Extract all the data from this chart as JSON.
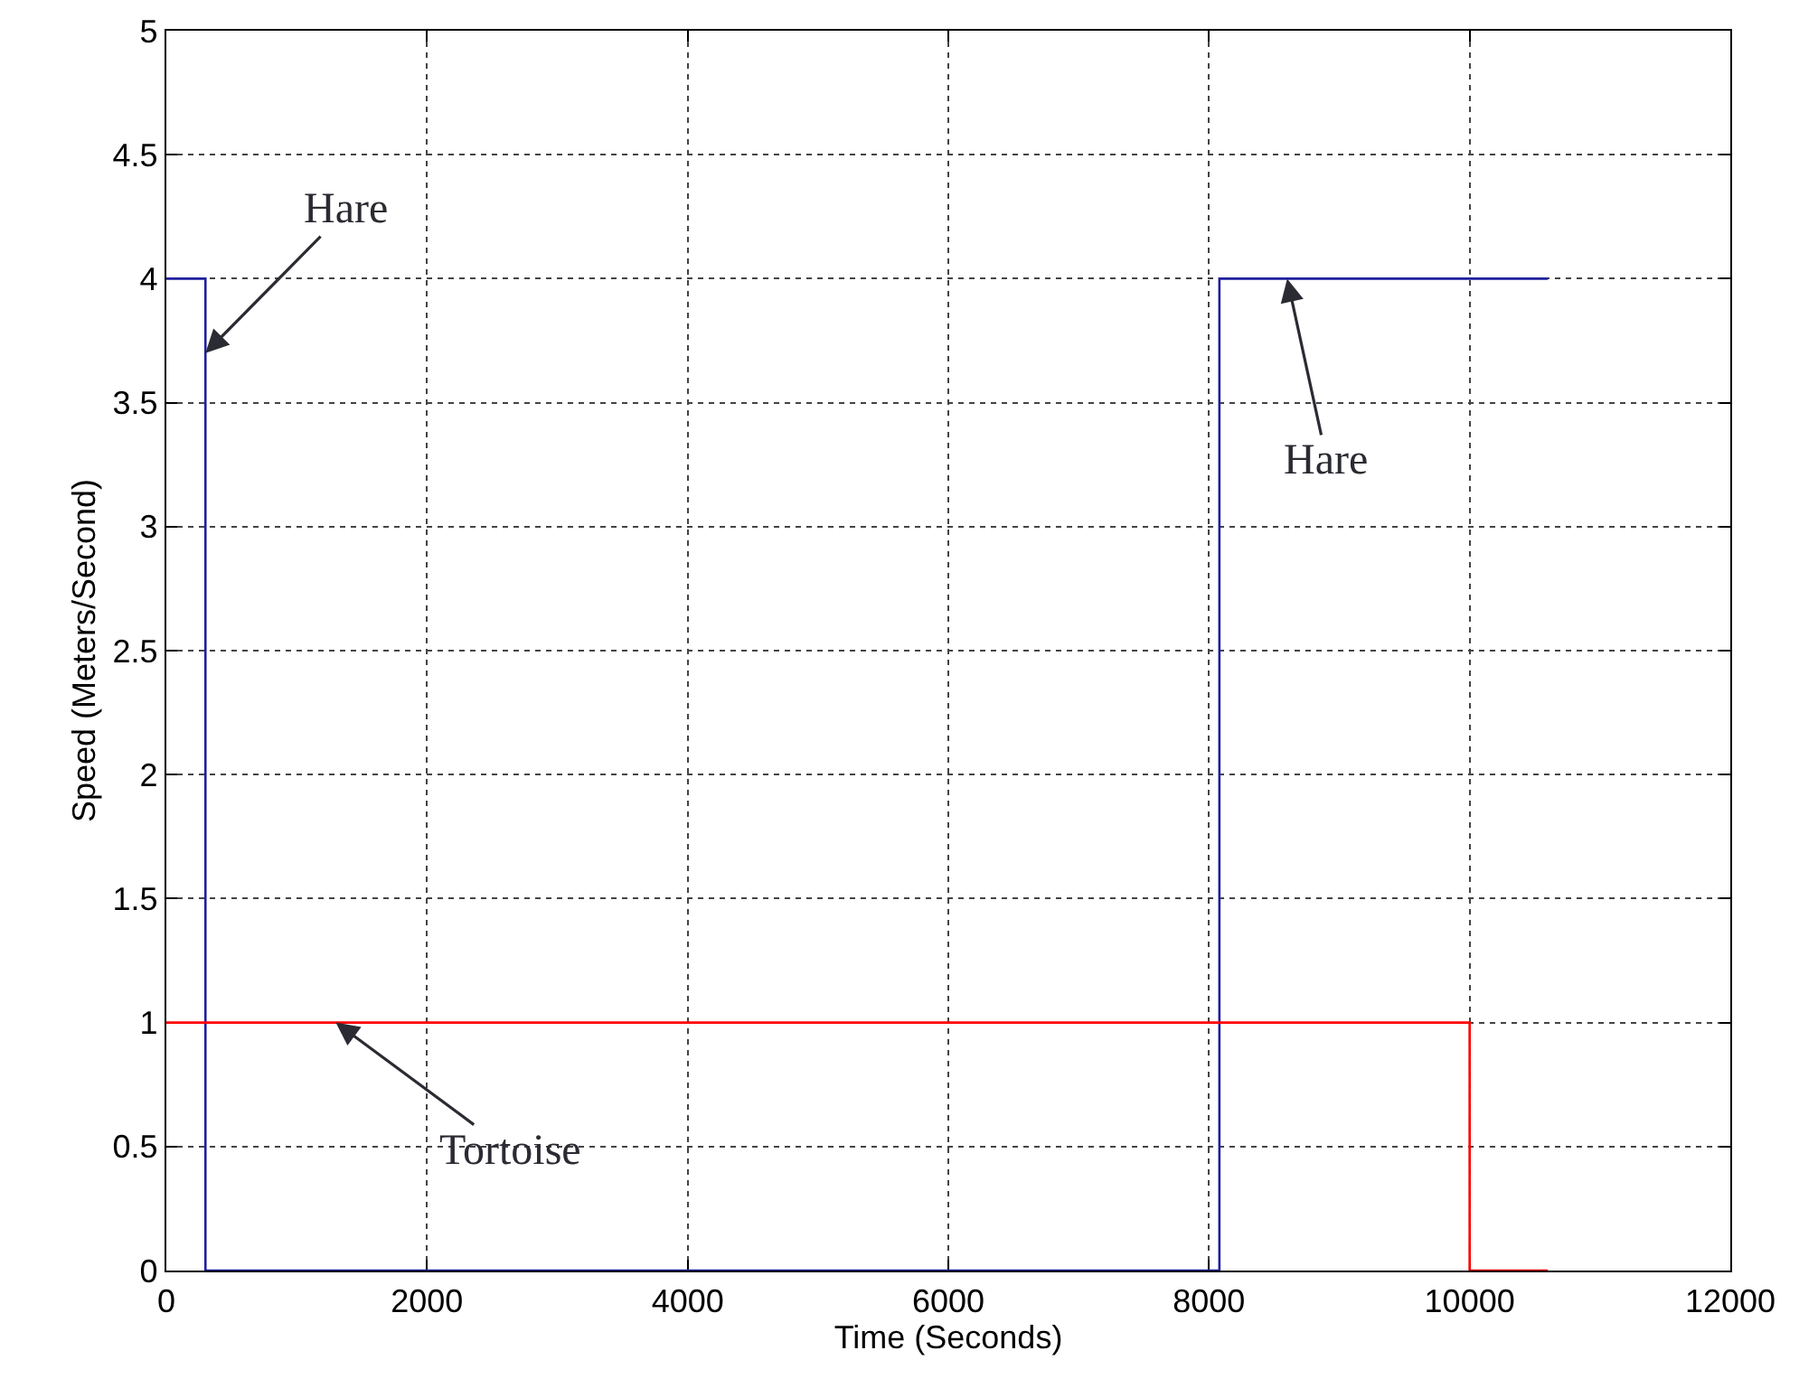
{
  "chart_data": {
    "type": "step",
    "xlabel": "Time (Seconds)",
    "ylabel": "Speed (Meters/Second)",
    "xlim": [
      0,
      12000
    ],
    "xticks": [
      0,
      2000,
      4000,
      6000,
      8000,
      10000,
      12000
    ],
    "ylim": [
      0,
      5
    ],
    "yticks": [
      0,
      0.5,
      1,
      1.5,
      2,
      2.5,
      3,
      3.5,
      4,
      4.5,
      5
    ],
    "grid": true,
    "marker": "none",
    "line_style": "solid",
    "series": [
      {
        "color": "#1f1f9e",
        "x": [
          0,
          300,
          8080,
          10600
        ],
        "values": [
          4,
          0,
          4,
          4
        ]
      },
      {
        "color": "#ff0000",
        "x": [
          0,
          10000,
          10600
        ],
        "values": [
          1,
          0,
          0
        ]
      }
    ],
    "annotations": [
      {
        "text": "Hare",
        "x": 300,
        "y": 3.7
      },
      {
        "text": "Hare",
        "x": 8600,
        "y": 4
      },
      {
        "text": "Tortoise",
        "x": 1300,
        "y": 1
      }
    ]
  }
}
